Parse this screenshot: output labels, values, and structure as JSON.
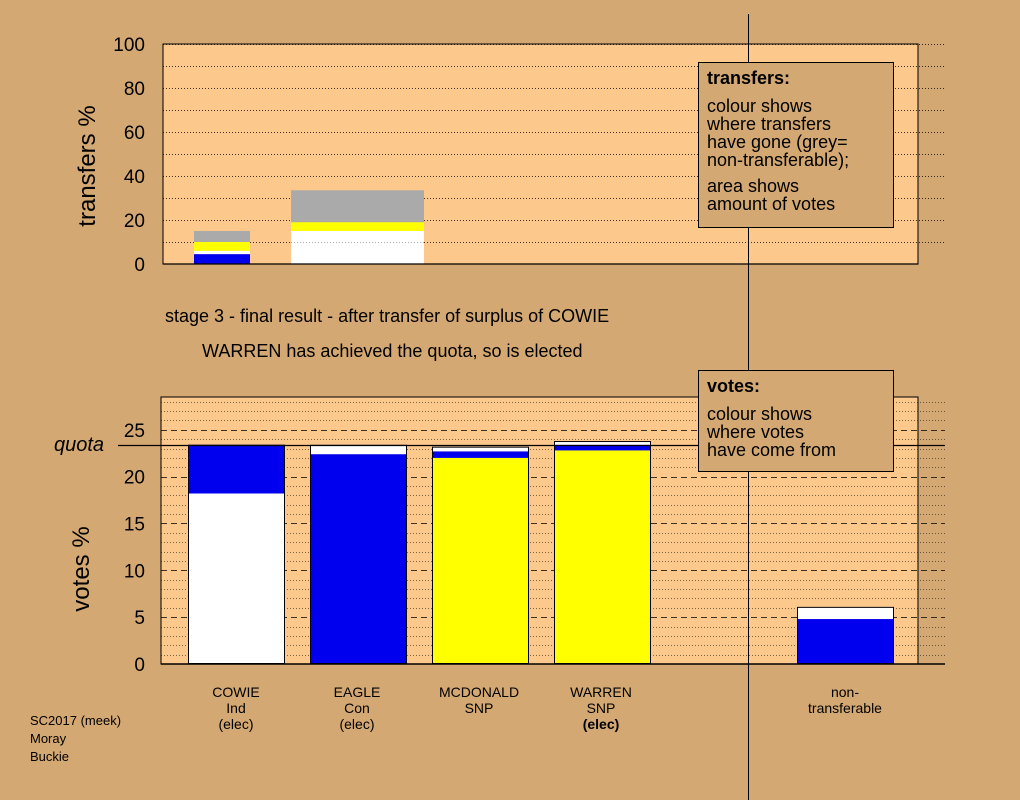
{
  "headings": {
    "stage": "stage 3 - final result - after transfer of surplus of COWIE",
    "status": "WARREN has achieved the quota, so is elected"
  },
  "legend_transfers": {
    "title": "transfers:",
    "lines": [
      "colour shows",
      "where transfers",
      "have gone (grey=",
      "non-transferable);"
    ],
    "lines2": [
      "area shows",
      "amount of votes"
    ]
  },
  "legend_votes": {
    "title": "votes:",
    "lines": [
      "colour shows",
      "where votes",
      "have come from"
    ]
  },
  "candidates": [
    {
      "name": "COWIE",
      "party": "Ind",
      "status": "(elec)",
      "status_bold": false
    },
    {
      "name": "EAGLE",
      "party": "Con",
      "status": "(elec)",
      "status_bold": false
    },
    {
      "name": "MCDONALD",
      "party": "SNP",
      "status": "",
      "status_bold": false
    },
    {
      "name": "WARREN",
      "party": "SNP",
      "status": "(elec)",
      "status_bold": true
    }
  ],
  "nontransferable_label": [
    "non-",
    "transferable"
  ],
  "footer": [
    "SC2017 (meek)",
    "Moray",
    "Buckie"
  ],
  "colors": {
    "background": "#d4a872",
    "plot": "#fcc88c",
    "ind": "#ffffff",
    "con": "#0000ee",
    "snp": "#ffff00",
    "nontransferable": "#aaaaaa"
  },
  "chart_data": [
    {
      "type": "bar",
      "name": "transfers",
      "ylabel": "transfers %",
      "ylim": [
        0,
        100
      ],
      "yticks": [
        0,
        20,
        40,
        60,
        80,
        100
      ],
      "stacked": true,
      "bars": [
        {
          "segments": [
            {
              "color": "con",
              "value": 4.5
            },
            {
              "color": "ind",
              "value": 1.5
            },
            {
              "color": "snp",
              "value": 4
            },
            {
              "color": "nontransferable",
              "value": 5
            }
          ]
        },
        {
          "segments": [
            {
              "color": "ind",
              "value": 15
            },
            {
              "color": "snp",
              "value": 4
            },
            {
              "color": "nontransferable",
              "value": 14.5
            }
          ]
        }
      ]
    },
    {
      "type": "bar",
      "name": "votes",
      "ylabel": "votes %",
      "ylim": [
        0,
        28.5
      ],
      "yticks": [
        0,
        5,
        10,
        15,
        20,
        25
      ],
      "quota": 23.4,
      "quota_label": "quota",
      "stacked": true,
      "categories": [
        "COWIE",
        "EAGLE",
        "MCDONALD",
        "WARREN",
        "non-transferable"
      ],
      "bars": [
        {
          "segments": [
            {
              "color": "ind",
              "value": 18.2
            },
            {
              "color": "con",
              "value": 5.2
            }
          ]
        },
        {
          "segments": [
            {
              "color": "con",
              "value": 22.4
            },
            {
              "color": "ind",
              "value": 1.0
            }
          ]
        },
        {
          "segments": [
            {
              "color": "snp",
              "value": 22.0
            },
            {
              "color": "con",
              "value": 0.7
            },
            {
              "color": "ind",
              "value": 0.5
            }
          ]
        },
        {
          "segments": [
            {
              "color": "snp",
              "value": 22.8
            },
            {
              "color": "con",
              "value": 0.6
            },
            {
              "color": "ind",
              "value": 0.4
            }
          ]
        },
        {
          "segments": [
            {
              "color": "con",
              "value": 4.8
            },
            {
              "color": "ind",
              "value": 1.3
            }
          ]
        }
      ]
    }
  ]
}
